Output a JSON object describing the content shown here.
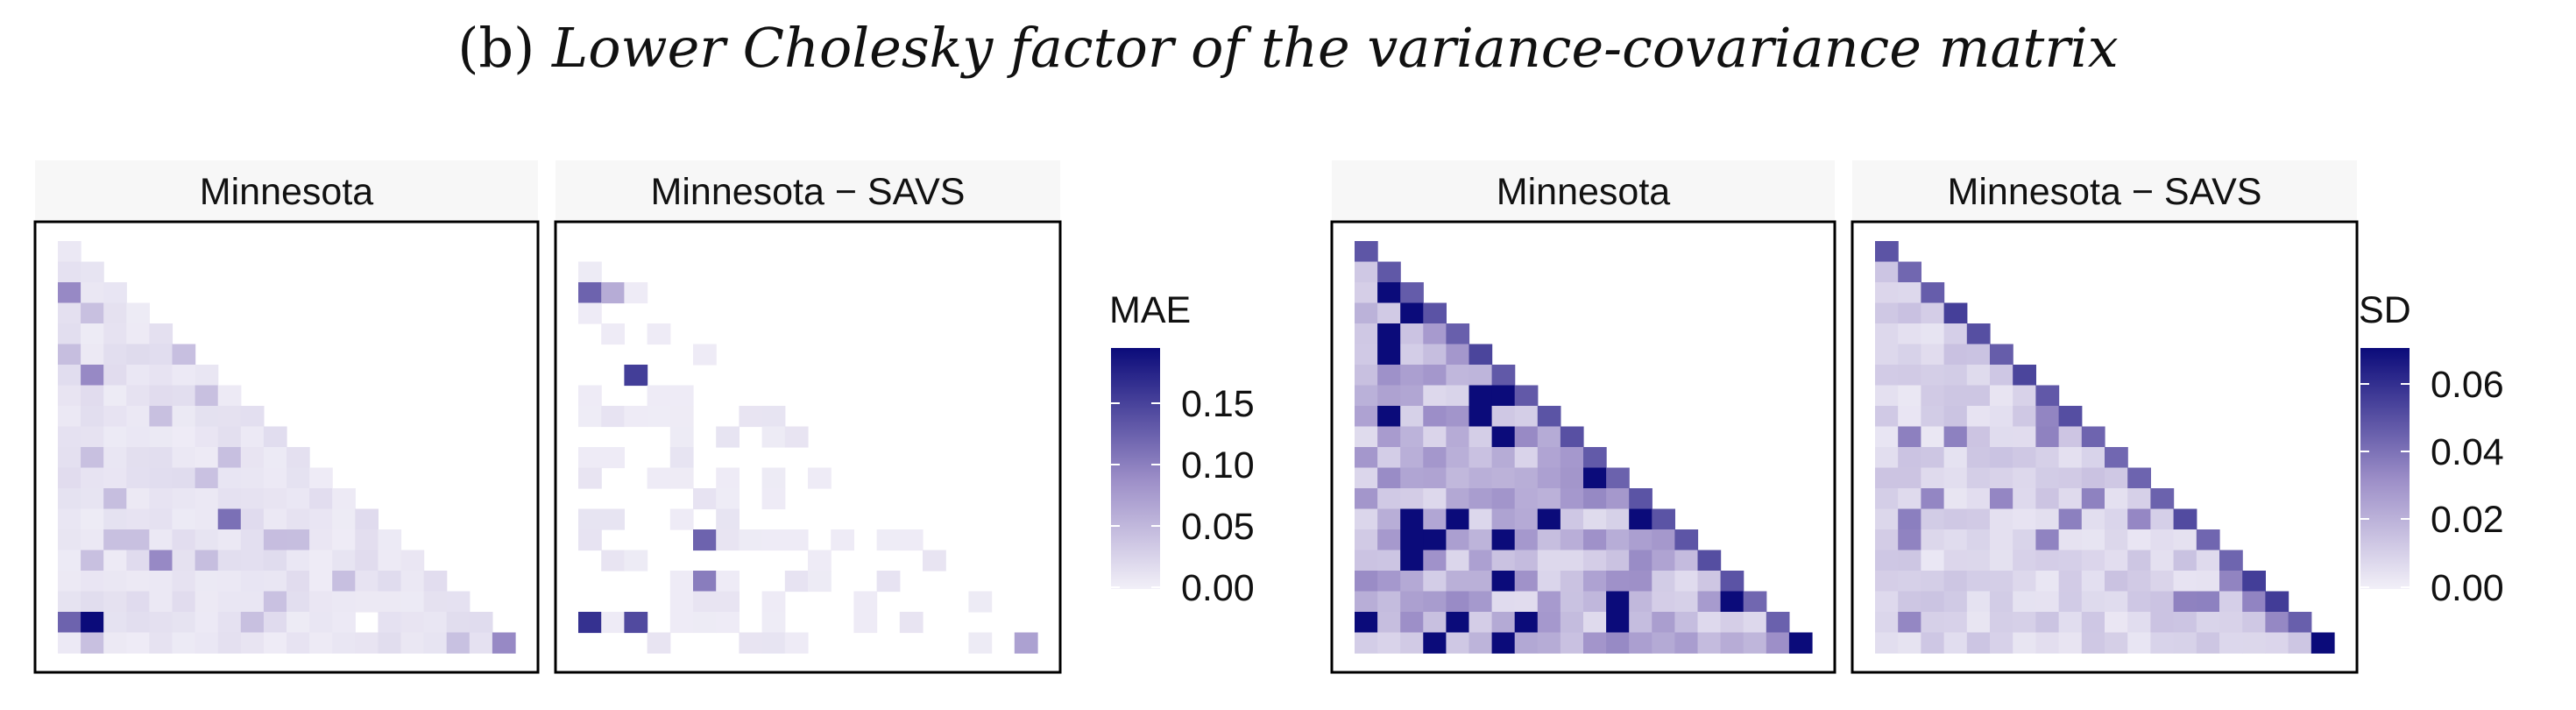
{
  "figure": {
    "title_prefix": "(b) ",
    "title_italic": "Lower Cholesky factor of the variance-covariance matrix"
  },
  "colors": {
    "low": "#f2f0f8",
    "mid": "#9d8fc8",
    "high": "#0b0b7a",
    "strip_bg": "#f7f7f7",
    "panel_border": "#000000"
  },
  "chart_data": [
    {
      "type": "heatmap",
      "facet": "Minnesota",
      "fill_label": "MAE",
      "matrix_dim": 20,
      "lower_triangular": true,
      "scale_range": [
        0,
        0.19
      ],
      "legend_ticks": [
        "0.00",
        "0.05",
        "0.10",
        "0.15"
      ],
      "cells": [
        [
          2,
          0,
          0.09
        ],
        [
          13,
          7,
          0.11
        ],
        [
          18,
          1,
          0.19
        ],
        [
          18,
          0,
          0.12
        ],
        [
          6,
          1,
          0.09
        ],
        [
          15,
          4,
          0.09
        ],
        [
          19,
          19,
          0.09
        ]
      ],
      "background_level": 0.012
    },
    {
      "type": "heatmap",
      "facet": "Minnesota − SAVS",
      "fill_label": "MAE",
      "matrix_dim": 20,
      "lower_triangular": true,
      "scale_range": [
        0,
        0.19
      ],
      "legend_ticks": [
        "0.00",
        "0.05",
        "0.10",
        "0.15"
      ],
      "cells": [
        [
          2,
          0,
          0.12
        ],
        [
          2,
          1,
          0.06
        ],
        [
          6,
          2,
          0.15
        ],
        [
          18,
          0,
          0.16
        ],
        [
          18,
          2,
          0.14
        ],
        [
          14,
          5,
          0.12
        ],
        [
          16,
          5,
          0.1
        ],
        [
          11,
          12,
          0.1
        ],
        [
          19,
          19,
          0.07
        ]
      ],
      "background_level": 0.003
    },
    {
      "type": "heatmap",
      "facet": "Minnesota",
      "fill_label": "SD",
      "matrix_dim": 20,
      "lower_triangular": true,
      "scale_range": [
        0,
        0.072
      ],
      "legend_ticks": [
        "0.00",
        "0.02",
        "0.04",
        "0.06"
      ],
      "diagonal_level": 0.05,
      "last_diagonal_level": 0.072,
      "background_level": 0.022
    },
    {
      "type": "heatmap",
      "facet": "Minnesota − SAVS",
      "fill_label": "SD",
      "matrix_dim": 20,
      "lower_triangular": true,
      "scale_range": [
        0,
        0.072
      ],
      "legend_ticks": [
        "0.00",
        "0.02",
        "0.04",
        "0.06"
      ],
      "diagonal_level": 0.052,
      "last_diagonal_level": 0.072,
      "background_level": 0.01
    }
  ],
  "legends": [
    {
      "title": "MAE",
      "ticks": [
        "0.15",
        "0.10",
        "0.05",
        "0.00"
      ]
    },
    {
      "title": "SD",
      "ticks": [
        "0.06",
        "0.04",
        "0.02",
        "0.00"
      ]
    }
  ]
}
